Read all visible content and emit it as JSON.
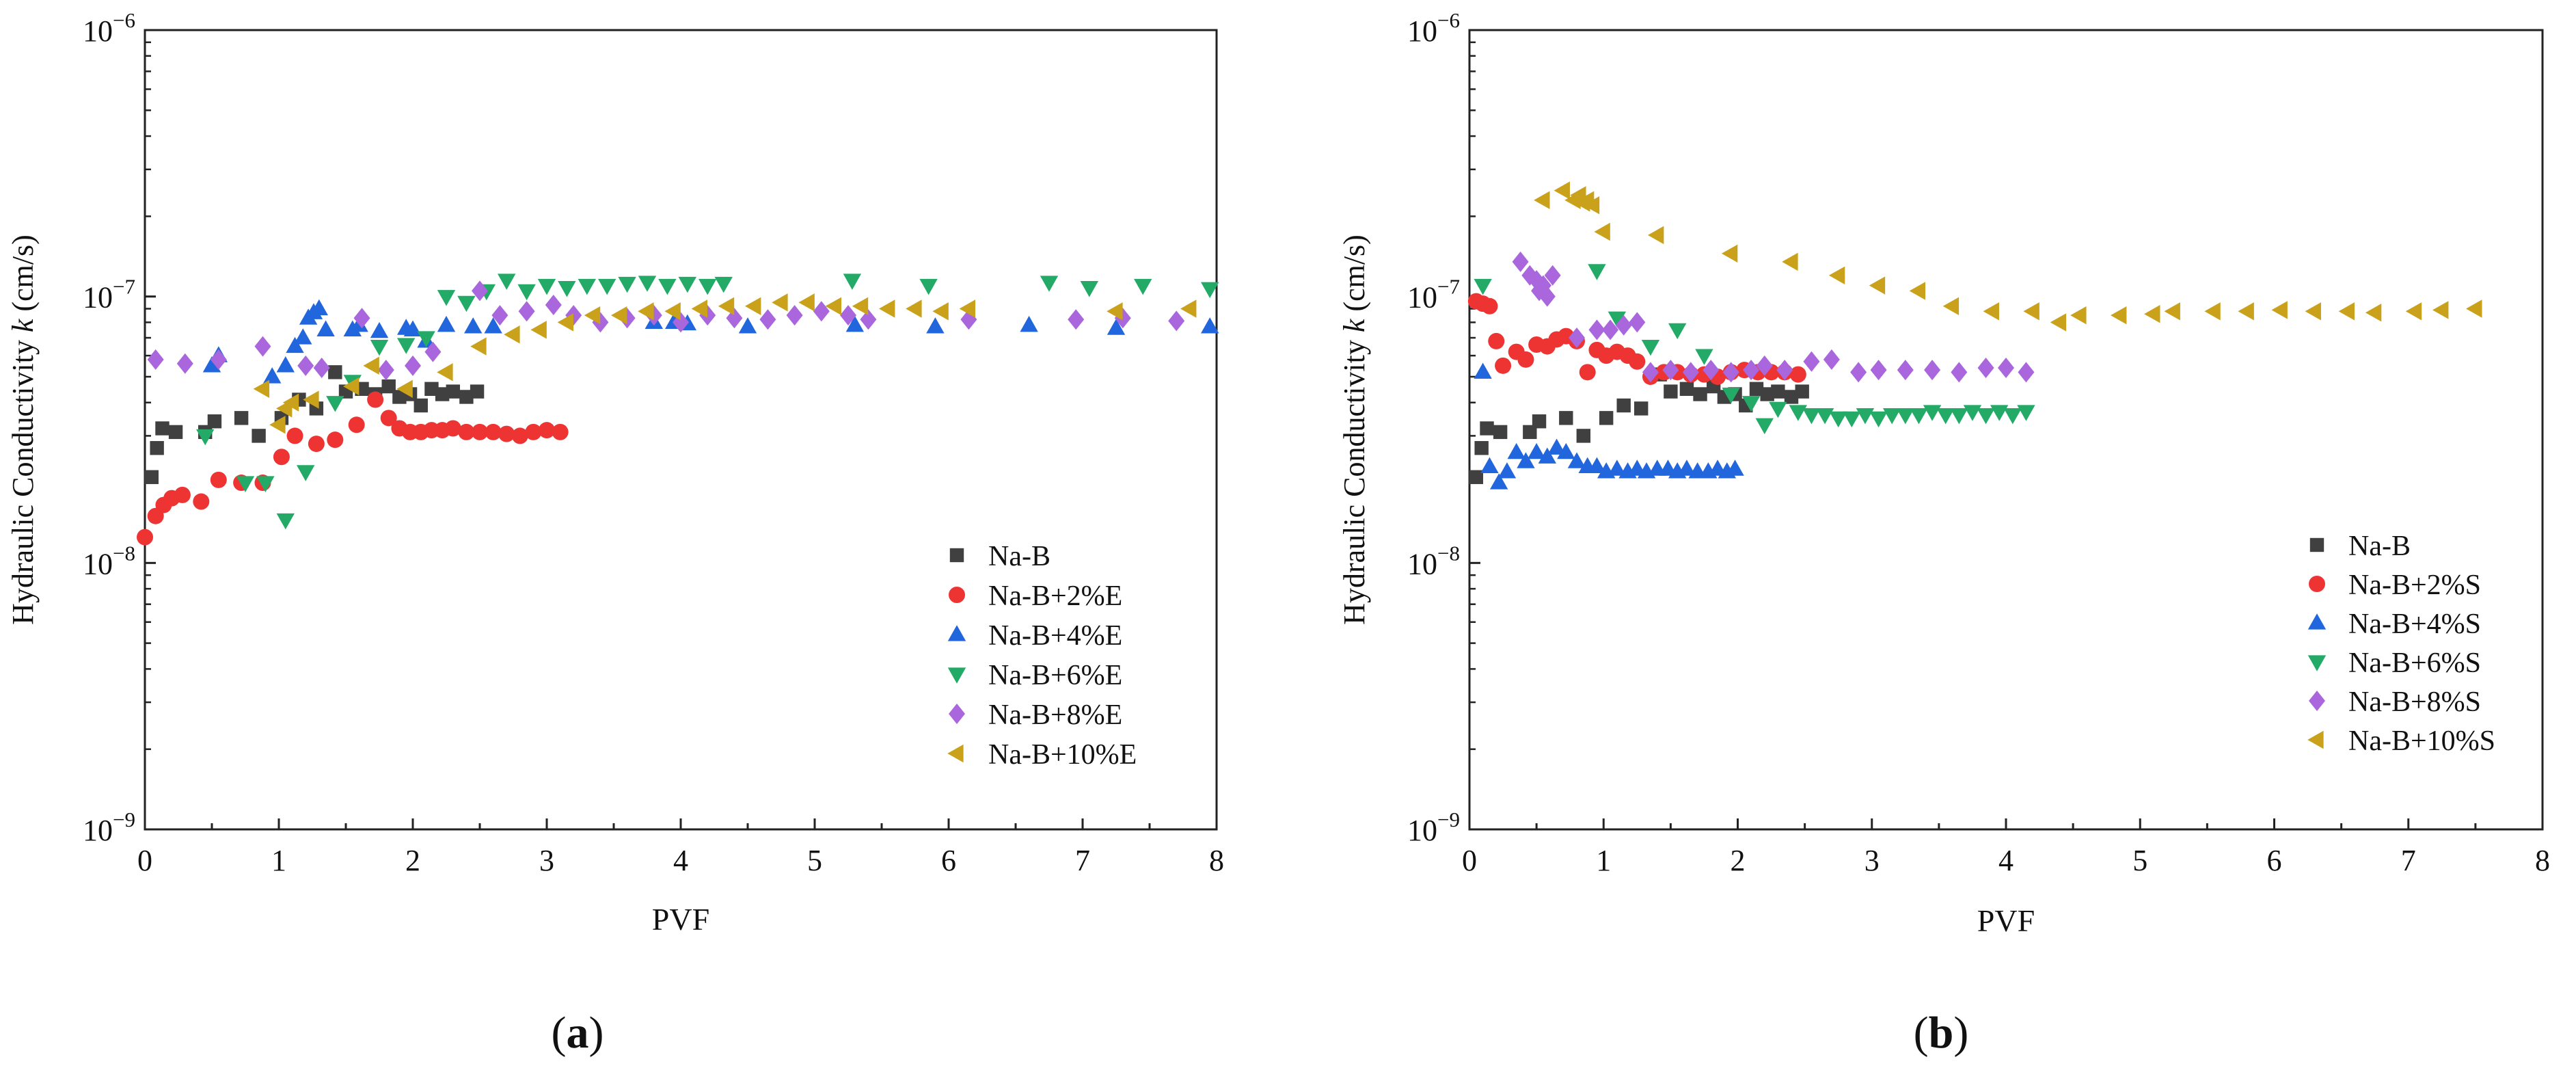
{
  "chart_data": [
    {
      "type": "scatter",
      "panel_label": "(a)",
      "panel_letter": "a",
      "xlabel": "PVF",
      "ylabel_main": "Hydraulic Conductivity ",
      "ylabel_symbol": "k",
      "ylabel_unit": " (cm/s)",
      "xlim": [
        0,
        8
      ],
      "ylim": [
        1e-09,
        1e-06
      ],
      "y_scale": "log",
      "x_ticks": [
        "0",
        "1",
        "2",
        "3",
        "4",
        "5",
        "6",
        "7",
        "8"
      ],
      "y_ticks": [
        {
          "value": 1e-09,
          "base": "10",
          "exp": "−9"
        },
        {
          "value": 1e-08,
          "base": "10",
          "exp": "−8"
        },
        {
          "value": 1e-07,
          "base": "10",
          "exp": "−7"
        },
        {
          "value": 1e-06,
          "base": "10",
          "exp": "−6"
        }
      ],
      "grid": false,
      "legend_position": "bottom-right",
      "series": [
        {
          "name": "Na-B",
          "marker": "square",
          "color": "#404040",
          "x": [
            0.05,
            0.09,
            0.13,
            0.23,
            0.45,
            0.52,
            0.72,
            0.85,
            1.02,
            1.15,
            1.28,
            1.42,
            1.5,
            1.62,
            1.72,
            1.82,
            1.9,
            1.98,
            2.06,
            2.14,
            2.22,
            2.3,
            2.4,
            2.48
          ],
          "y": [
            2.1e-08,
            2.7e-08,
            3.2e-08,
            3.1e-08,
            3.1e-08,
            3.4e-08,
            3.5e-08,
            3e-08,
            3.5e-08,
            4.1e-08,
            3.8e-08,
            5.2e-08,
            4.4e-08,
            4.5e-08,
            4.3e-08,
            4.6e-08,
            4.2e-08,
            4.3e-08,
            3.9e-08,
            4.5e-08,
            4.3e-08,
            4.4e-08,
            4.2e-08,
            4.4e-08
          ]
        },
        {
          "name": "Na-B+2%E",
          "marker": "circle",
          "color": "#ee3333",
          "x": [
            0.0,
            0.08,
            0.14,
            0.2,
            0.28,
            0.42,
            0.55,
            0.72,
            0.88,
            1.02,
            1.12,
            1.28,
            1.42,
            1.58,
            1.72,
            1.82,
            1.9,
            1.98,
            2.06,
            2.14,
            2.22,
            2.3,
            2.4,
            2.5,
            2.6,
            2.7,
            2.8,
            2.9,
            3.0,
            3.1
          ],
          "y": [
            1.25e-08,
            1.5e-08,
            1.65e-08,
            1.75e-08,
            1.8e-08,
            1.7e-08,
            2.05e-08,
            2e-08,
            2e-08,
            2.5e-08,
            3e-08,
            2.8e-08,
            2.9e-08,
            3.3e-08,
            4.1e-08,
            3.5e-08,
            3.2e-08,
            3.1e-08,
            3.1e-08,
            3.15e-08,
            3.15e-08,
            3.2e-08,
            3.1e-08,
            3.1e-08,
            3.1e-08,
            3.05e-08,
            3e-08,
            3.1e-08,
            3.15e-08,
            3.1e-08
          ]
        },
        {
          "name": "Na-B+4%E",
          "marker": "triangle-up",
          "color": "#2266dd",
          "x": [
            0.5,
            0.55,
            0.95,
            1.05,
            1.12,
            1.18,
            1.22,
            1.26,
            1.3,
            1.35,
            1.55,
            1.6,
            1.75,
            1.95,
            2.0,
            2.1,
            2.25,
            2.45,
            2.6,
            3.8,
            3.95,
            4.05,
            4.5,
            5.3,
            5.9,
            6.6,
            7.25,
            7.95
          ],
          "y": [
            5.5e-08,
            6e-08,
            5e-08,
            5.5e-08,
            6.5e-08,
            7e-08,
            8.3e-08,
            8.7e-08,
            9e-08,
            7.5e-08,
            7.5e-08,
            7.8e-08,
            7.4e-08,
            7.6e-08,
            7.5e-08,
            6.8e-08,
            7.8e-08,
            7.7e-08,
            7.7e-08,
            8e-08,
            8e-08,
            7.9e-08,
            7.7e-08,
            7.8e-08,
            7.7e-08,
            7.8e-08,
            7.6e-08,
            7.7e-08
          ]
        },
        {
          "name": "Na-B+6%E",
          "marker": "triangle-down",
          "color": "#22aa66",
          "x": [
            0.45,
            0.75,
            0.9,
            1.05,
            1.2,
            1.42,
            1.55,
            1.75,
            1.95,
            2.1,
            2.25,
            2.4,
            2.55,
            2.7,
            2.85,
            3.0,
            3.15,
            3.3,
            3.45,
            3.6,
            3.75,
            3.9,
            4.05,
            4.2,
            4.32,
            5.28,
            5.85,
            6.75,
            7.05,
            7.45,
            7.95
          ],
          "y": [
            3e-08,
            2e-08,
            2e-08,
            1.45e-08,
            2.2e-08,
            4e-08,
            4.8e-08,
            6.5e-08,
            6.6e-08,
            7e-08,
            1e-07,
            9.5e-08,
            1.05e-07,
            1.15e-07,
            1.05e-07,
            1.1e-07,
            1.08e-07,
            1.1e-07,
            1.1e-07,
            1.12e-07,
            1.13e-07,
            1.1e-07,
            1.12e-07,
            1.1e-07,
            1.12e-07,
            1.15e-07,
            1.1e-07,
            1.13e-07,
            1.08e-07,
            1.1e-07,
            1.07e-07
          ]
        },
        {
          "name": "Na-B+8%E",
          "marker": "diamond",
          "color": "#a966dd",
          "x": [
            0.08,
            0.3,
            0.55,
            0.88,
            1.2,
            1.32,
            1.62,
            1.8,
            2.0,
            2.15,
            2.5,
            2.65,
            2.85,
            3.05,
            3.2,
            3.4,
            3.6,
            3.8,
            4.0,
            4.2,
            4.4,
            4.65,
            4.85,
            5.05,
            5.25,
            5.4,
            6.15,
            6.95,
            7.3,
            7.7
          ],
          "y": [
            5.8e-08,
            5.6e-08,
            5.8e-08,
            6.5e-08,
            5.5e-08,
            5.4e-08,
            8.3e-08,
            5.3e-08,
            5.5e-08,
            6.2e-08,
            1.05e-07,
            8.5e-08,
            8.8e-08,
            9.3e-08,
            8.5e-08,
            8e-08,
            8.3e-08,
            8.5e-08,
            8e-08,
            8.5e-08,
            8.3e-08,
            8.2e-08,
            8.5e-08,
            8.8e-08,
            8.5e-08,
            8.2e-08,
            8.2e-08,
            8.2e-08,
            8.3e-08,
            8.1e-08
          ]
        },
        {
          "name": "Na-B+10%E",
          "marker": "triangle-left",
          "color": "#c9a11a",
          "x": [
            0.88,
            1.0,
            1.05,
            1.1,
            1.25,
            1.55,
            1.7,
            1.95,
            2.25,
            2.5,
            2.75,
            2.95,
            3.15,
            3.35,
            3.55,
            3.75,
            3.95,
            4.15,
            4.35,
            4.55,
            4.75,
            4.95,
            5.15,
            5.35,
            5.55,
            5.75,
            5.95,
            6.15,
            7.25,
            7.8
          ],
          "y": [
            4.5e-08,
            3.3e-08,
            3.8e-08,
            4e-08,
            4.1e-08,
            4.6e-08,
            5.5e-08,
            4.5e-08,
            5.2e-08,
            6.5e-08,
            7.2e-08,
            7.5e-08,
            8e-08,
            8.5e-08,
            8.5e-08,
            8.8e-08,
            8.8e-08,
            9e-08,
            9.2e-08,
            9.2e-08,
            9.5e-08,
            9.5e-08,
            9.2e-08,
            9.2e-08,
            9e-08,
            9e-08,
            8.8e-08,
            9e-08,
            8.8e-08,
            9e-08
          ]
        }
      ]
    },
    {
      "type": "scatter",
      "panel_label": "(b)",
      "panel_letter": "b",
      "xlabel": "PVF",
      "ylabel_main": "Hydraulic Conductivity ",
      "ylabel_symbol": "k",
      "ylabel_unit": " (cm/s)",
      "xlim": [
        0,
        8
      ],
      "ylim": [
        1e-09,
        1e-06
      ],
      "y_scale": "log",
      "x_ticks": [
        "0",
        "1",
        "2",
        "3",
        "4",
        "5",
        "6",
        "7",
        "8"
      ],
      "y_ticks": [
        {
          "value": 1e-09,
          "base": "10",
          "exp": "−9"
        },
        {
          "value": 1e-08,
          "base": "10",
          "exp": "−8"
        },
        {
          "value": 1e-07,
          "base": "10",
          "exp": "−7"
        },
        {
          "value": 1e-06,
          "base": "10",
          "exp": "−6"
        }
      ],
      "grid": false,
      "legend_position": "bottom-right",
      "series": [
        {
          "name": "Na-B",
          "marker": "square",
          "color": "#404040",
          "x": [
            0.05,
            0.09,
            0.13,
            0.23,
            0.45,
            0.52,
            0.72,
            0.85,
            1.02,
            1.15,
            1.28,
            1.42,
            1.5,
            1.62,
            1.72,
            1.82,
            1.9,
            1.98,
            2.06,
            2.14,
            2.22,
            2.3,
            2.4,
            2.48
          ],
          "y": [
            2.1e-08,
            2.7e-08,
            3.2e-08,
            3.1e-08,
            3.1e-08,
            3.4e-08,
            3.5e-08,
            3e-08,
            3.5e-08,
            3.9e-08,
            3.8e-08,
            5.1e-08,
            4.4e-08,
            4.5e-08,
            4.3e-08,
            4.6e-08,
            4.2e-08,
            4.3e-08,
            3.9e-08,
            4.5e-08,
            4.3e-08,
            4.4e-08,
            4.2e-08,
            4.4e-08
          ]
        },
        {
          "name": "Na-B+2%S",
          "marker": "circle",
          "color": "#ee3333",
          "x": [
            0.05,
            0.1,
            0.15,
            0.2,
            0.25,
            0.35,
            0.42,
            0.5,
            0.58,
            0.65,
            0.72,
            0.8,
            0.88,
            0.95,
            1.02,
            1.1,
            1.18,
            1.25,
            1.35,
            1.45,
            1.55,
            1.65,
            1.75,
            1.85,
            1.95,
            2.05,
            2.15,
            2.25,
            2.35,
            2.45
          ],
          "y": [
            9.6e-08,
            9.4e-08,
            9.2e-08,
            6.8e-08,
            5.5e-08,
            6.2e-08,
            5.8e-08,
            6.6e-08,
            6.5e-08,
            6.9e-08,
            7.1e-08,
            6.8e-08,
            5.2e-08,
            6.3e-08,
            6e-08,
            6.2e-08,
            6e-08,
            5.7e-08,
            5e-08,
            5.2e-08,
            5.2e-08,
            5.1e-08,
            5.1e-08,
            5e-08,
            5.2e-08,
            5.3e-08,
            5.2e-08,
            5.2e-08,
            5.2e-08,
            5.1e-08
          ]
        },
        {
          "name": "Na-B+4%S",
          "marker": "triangle-up",
          "color": "#2266dd",
          "x": [
            0.1,
            0.15,
            0.22,
            0.28,
            0.35,
            0.42,
            0.5,
            0.58,
            0.65,
            0.72,
            0.8,
            0.88,
            0.95,
            1.02,
            1.1,
            1.18,
            1.25,
            1.32,
            1.4,
            1.48,
            1.55,
            1.62,
            1.7,
            1.78,
            1.85,
            1.92,
            1.98
          ],
          "y": [
            5.2e-08,
            2.3e-08,
            2e-08,
            2.2e-08,
            2.6e-08,
            2.4e-08,
            2.6e-08,
            2.5e-08,
            2.7e-08,
            2.6e-08,
            2.4e-08,
            2.3e-08,
            2.3e-08,
            2.2e-08,
            2.25e-08,
            2.2e-08,
            2.25e-08,
            2.2e-08,
            2.25e-08,
            2.25e-08,
            2.2e-08,
            2.25e-08,
            2.2e-08,
            2.2e-08,
            2.25e-08,
            2.2e-08,
            2.25e-08
          ]
        },
        {
          "name": "Na-B+6%S",
          "marker": "triangle-down",
          "color": "#22aa66",
          "x": [
            0.1,
            0.95,
            1.1,
            1.35,
            1.55,
            1.75,
            1.95,
            2.1,
            2.2,
            2.3,
            2.45,
            2.55,
            2.65,
            2.75,
            2.85,
            2.95,
            3.05,
            3.15,
            3.25,
            3.35,
            3.45,
            3.55,
            3.65,
            3.75,
            3.85,
            3.95,
            4.05,
            4.15
          ],
          "y": [
            1.1e-07,
            1.25e-07,
            8.3e-08,
            6.5e-08,
            7.5e-08,
            6e-08,
            4.3e-08,
            4e-08,
            3.3e-08,
            3.8e-08,
            3.7e-08,
            3.6e-08,
            3.6e-08,
            3.5e-08,
            3.5e-08,
            3.6e-08,
            3.5e-08,
            3.6e-08,
            3.6e-08,
            3.6e-08,
            3.7e-08,
            3.6e-08,
            3.6e-08,
            3.7e-08,
            3.6e-08,
            3.7e-08,
            3.6e-08,
            3.7e-08
          ]
        },
        {
          "name": "Na-B+8%S",
          "marker": "diamond",
          "color": "#a966dd",
          "x": [
            0.38,
            0.45,
            0.5,
            0.52,
            0.55,
            0.58,
            0.62,
            0.8,
            0.95,
            1.05,
            1.15,
            1.25,
            1.35,
            1.5,
            1.65,
            1.8,
            1.95,
            2.1,
            2.2,
            2.35,
            2.55,
            2.7,
            2.9,
            3.05,
            3.25,
            3.45,
            3.65,
            3.85,
            4.0,
            4.15
          ],
          "y": [
            1.35e-07,
            1.2e-07,
            1.15e-07,
            1.05e-07,
            1.1e-07,
            1e-07,
            1.2e-07,
            7e-08,
            7.5e-08,
            7.5e-08,
            7.8e-08,
            8e-08,
            5.2e-08,
            5.3e-08,
            5.2e-08,
            5.3e-08,
            5.2e-08,
            5.3e-08,
            5.5e-08,
            5.3e-08,
            5.7e-08,
            5.8e-08,
            5.2e-08,
            5.3e-08,
            5.3e-08,
            5.3e-08,
            5.2e-08,
            5.4e-08,
            5.4e-08,
            5.2e-08
          ]
        },
        {
          "name": "Na-B+10%S",
          "marker": "triangle-left",
          "color": "#c9a11a",
          "x": [
            0.55,
            0.7,
            0.78,
            0.82,
            0.85,
            0.88,
            0.92,
            1.0,
            1.4,
            1.95,
            2.4,
            2.75,
            3.05,
            3.35,
            3.6,
            3.9,
            4.2,
            4.4,
            4.55,
            4.85,
            5.1,
            5.25,
            5.55,
            5.8,
            6.05,
            6.3,
            6.55,
            6.75,
            7.05,
            7.25,
            7.5
          ],
          "y": [
            2.3e-07,
            2.5e-07,
            2.3e-07,
            2.4e-07,
            2.25e-07,
            2.3e-07,
            2.2e-07,
            1.75e-07,
            1.7e-07,
            1.45e-07,
            1.35e-07,
            1.2e-07,
            1.1e-07,
            1.05e-07,
            9.2e-08,
            8.8e-08,
            8.8e-08,
            8e-08,
            8.5e-08,
            8.5e-08,
            8.6e-08,
            8.8e-08,
            8.8e-08,
            8.8e-08,
            8.9e-08,
            8.8e-08,
            8.8e-08,
            8.7e-08,
            8.8e-08,
            8.9e-08,
            9e-08
          ]
        }
      ]
    }
  ]
}
